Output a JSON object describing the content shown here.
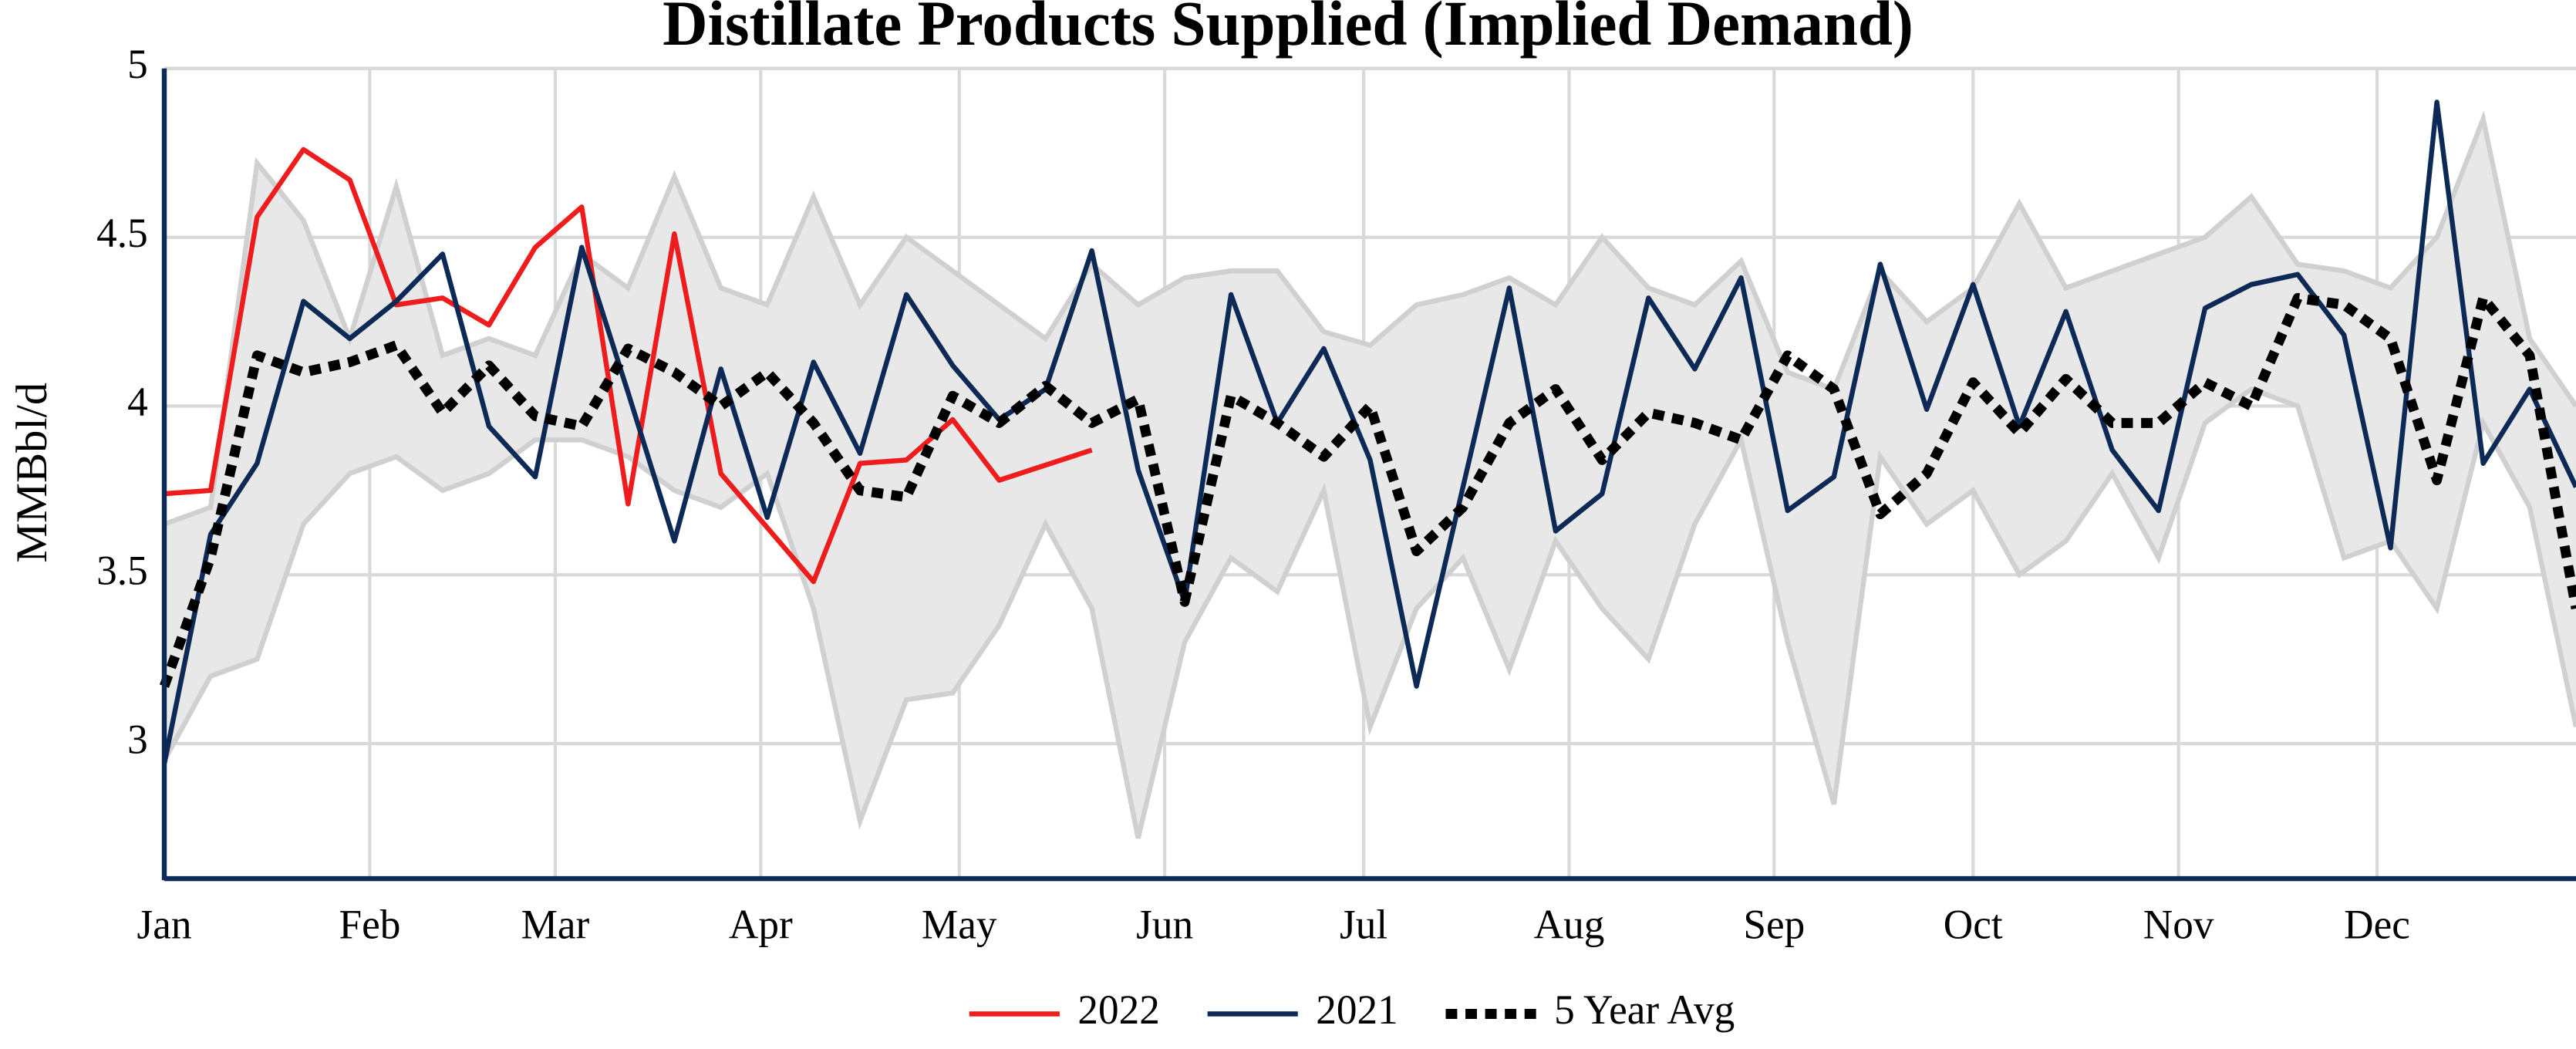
{
  "chart_data": {
    "type": "line",
    "title": "Distillate Products Supplied (Implied Demand)",
    "y_label": "MMBbl/d",
    "xlim": [
      0,
      52
    ],
    "xticks": [
      {
        "value": 0,
        "label": "Jan"
      },
      {
        "value": 4.43,
        "label": "Feb"
      },
      {
        "value": 8.43,
        "label": "Mar"
      },
      {
        "value": 12.86,
        "label": "Apr"
      },
      {
        "value": 17.14,
        "label": "May"
      },
      {
        "value": 21.57,
        "label": "Jun"
      },
      {
        "value": 25.86,
        "label": "Jul"
      },
      {
        "value": 30.29,
        "label": "Aug"
      },
      {
        "value": 34.71,
        "label": "Sep"
      },
      {
        "value": 39,
        "label": "Oct"
      },
      {
        "value": 43.43,
        "label": "Nov"
      },
      {
        "value": 47.71,
        "label": "Dec"
      }
    ],
    "ylim": [
      2.6,
      5
    ],
    "yticks": [
      3,
      3.5,
      4,
      4.5,
      5
    ],
    "grid": true,
    "legend": "bottom",
    "x": [
      0,
      1,
      2,
      3,
      4,
      5,
      6,
      7,
      8,
      9,
      10,
      11,
      12,
      13,
      14,
      15,
      16,
      17,
      18,
      19,
      20,
      21,
      22,
      23,
      24,
      25,
      26,
      27,
      28,
      29,
      30,
      31,
      32,
      33,
      34,
      35,
      36,
      37,
      38,
      39,
      40,
      41,
      42,
      43,
      44,
      45,
      46,
      47,
      48,
      49,
      50,
      51,
      52
    ],
    "band": {
      "color": "#e8e8e8",
      "edge_color": "#d0d0d0",
      "upper": [
        3.65,
        3.7,
        4.72,
        4.55,
        4.2,
        4.65,
        4.15,
        4.2,
        4.15,
        4.45,
        4.35,
        4.68,
        4.35,
        4.3,
        4.62,
        4.3,
        4.5,
        4.4,
        4.3,
        4.2,
        4.42,
        4.3,
        4.38,
        4.4,
        4.4,
        4.22,
        4.18,
        4.3,
        4.33,
        4.38,
        4.3,
        4.5,
        4.35,
        4.3,
        4.43,
        4.1,
        4.05,
        4.4,
        4.25,
        4.35,
        4.6,
        4.35,
        4.4,
        4.45,
        4.5,
        4.62,
        4.42,
        4.4,
        4.35,
        4.5,
        4.85,
        4.2,
        4.0
      ],
      "lower": [
        2.95,
        3.2,
        3.25,
        3.65,
        3.8,
        3.85,
        3.75,
        3.8,
        3.9,
        3.9,
        3.85,
        3.75,
        3.7,
        3.8,
        3.4,
        2.77,
        3.13,
        3.15,
        3.35,
        3.65,
        3.4,
        2.72,
        3.3,
        3.55,
        3.45,
        3.75,
        3.05,
        3.4,
        3.55,
        3.22,
        3.6,
        3.4,
        3.25,
        3.65,
        3.9,
        3.3,
        2.82,
        3.85,
        3.65,
        3.75,
        3.5,
        3.6,
        3.8,
        3.55,
        3.95,
        4.05,
        4.0,
        3.55,
        3.6,
        3.4,
        3.95,
        3.7,
        3.05
      ]
    },
    "series": [
      {
        "name": "2022",
        "color": "#ee1c1c",
        "style": "solid",
        "x": [
          0,
          1,
          2,
          3,
          4,
          5,
          6,
          7,
          8,
          9,
          10,
          11,
          12,
          14,
          15,
          16,
          17,
          18,
          20
        ],
        "values": [
          3.74,
          3.75,
          4.56,
          4.76,
          4.67,
          4.3,
          4.32,
          4.24,
          4.47,
          4.59,
          3.71,
          4.51,
          3.8,
          3.48,
          3.83,
          3.84,
          3.96,
          3.78,
          3.87
        ]
      },
      {
        "name": "2021",
        "color": "#0c2a55",
        "style": "solid",
        "values": [
          2.94,
          3.62,
          3.83,
          4.31,
          4.2,
          4.31,
          4.45,
          3.94,
          3.79,
          4.47,
          4.04,
          3.6,
          4.11,
          3.67,
          4.13,
          3.86,
          4.33,
          4.12,
          3.96,
          4.05,
          4.46,
          3.81,
          3.42,
          4.33,
          3.95,
          4.17,
          3.84,
          3.17,
          3.76,
          4.35,
          3.63,
          3.74,
          4.32,
          4.11,
          4.38,
          3.69,
          3.79,
          4.42,
          3.99,
          4.36,
          3.94,
          4.28,
          3.87,
          3.69,
          4.29,
          4.36,
          4.39,
          4.21,
          3.58,
          4.9,
          3.83,
          4.05,
          3.76
        ]
      },
      {
        "name": "5 Year Avg",
        "color": "#000000",
        "style": "dotted",
        "values": [
          3.17,
          3.55,
          4.15,
          4.1,
          4.13,
          4.18,
          3.98,
          4.12,
          3.97,
          3.94,
          4.17,
          4.1,
          4.0,
          4.1,
          3.95,
          3.75,
          3.73,
          4.03,
          3.95,
          4.06,
          3.95,
          4.02,
          3.42,
          4.03,
          3.95,
          3.85,
          4.0,
          3.57,
          3.7,
          3.95,
          4.05,
          3.84,
          3.98,
          3.95,
          3.9,
          4.15,
          4.05,
          3.68,
          3.8,
          4.07,
          3.92,
          4.08,
          3.95,
          3.95,
          4.07,
          4.0,
          4.32,
          4.3,
          4.2,
          3.78,
          4.32,
          4.15,
          3.4
        ]
      }
    ]
  }
}
